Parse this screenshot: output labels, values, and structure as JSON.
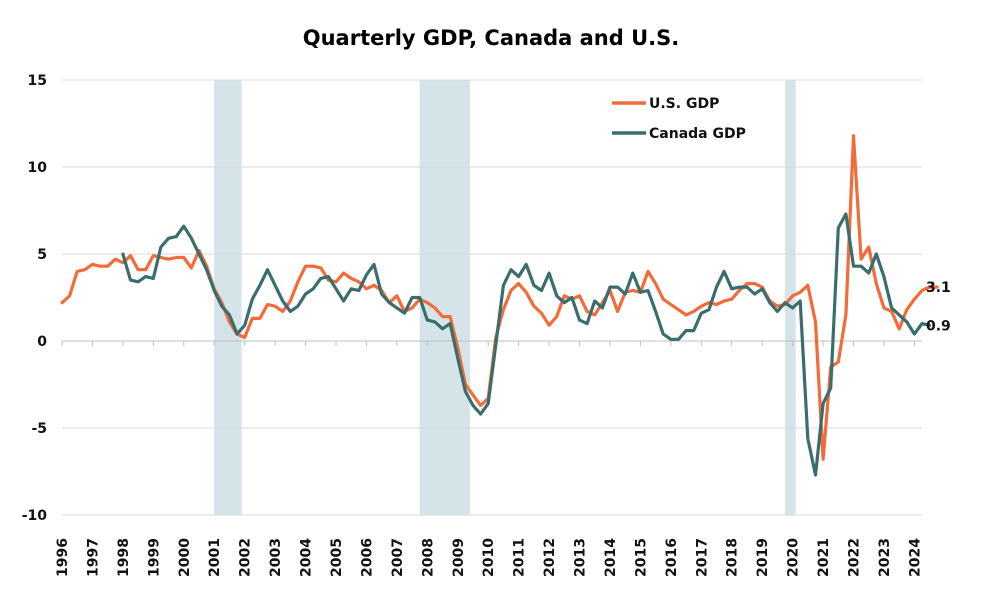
{
  "chart_data": {
    "type": "line",
    "title": "Quarterly GDP, Canada and U.S.",
    "xlabel": "",
    "ylabel": "",
    "xlim": [
      1996,
      2024.25
    ],
    "ylim": [
      -10,
      15
    ],
    "y_ticks": [
      15,
      10,
      5,
      0,
      -5,
      -10
    ],
    "y_tick_labels": [
      "15",
      "10",
      "5",
      "0",
      "-5",
      "-10"
    ],
    "x_tick_labels": [
      "1996",
      "1997",
      "1998",
      "1999",
      "2000",
      "2001",
      "2002",
      "2003",
      "2004",
      "2005",
      "2006",
      "2007",
      "2008",
      "2009",
      "2010",
      "2011",
      "2012",
      "2013",
      "2014",
      "2015",
      "2016",
      "2017",
      "2018",
      "2019",
      "2020",
      "2021",
      "2022",
      "2023",
      "2024"
    ],
    "grid": "horizontal",
    "legend_position": "top-right",
    "recession_shading": [
      [
        2001.0,
        2001.9
      ],
      [
        2007.75,
        2009.4
      ],
      [
        2019.75,
        2020.1
      ]
    ],
    "shading_color": "#d4e4e8",
    "series": [
      {
        "name": "U.S. GDP",
        "color": "#f26b38",
        "end_label": "3.1",
        "points": [
          [
            1996.0,
            2.2
          ],
          [
            1996.25,
            2.6
          ],
          [
            1996.5,
            4.0
          ],
          [
            1996.75,
            4.1
          ],
          [
            1997.0,
            4.4
          ],
          [
            1997.25,
            4.3
          ],
          [
            1997.5,
            4.3
          ],
          [
            1997.75,
            4.7
          ],
          [
            1998.0,
            4.5
          ],
          [
            1998.25,
            4.9
          ],
          [
            1998.5,
            4.1
          ],
          [
            1998.75,
            4.1
          ],
          [
            1999.0,
            4.9
          ],
          [
            1999.25,
            4.8
          ],
          [
            1999.5,
            4.7
          ],
          [
            1999.75,
            4.8
          ],
          [
            2000.0,
            4.8
          ],
          [
            2000.25,
            4.2
          ],
          [
            2000.5,
            5.2
          ],
          [
            2000.75,
            4.3
          ],
          [
            2001.0,
            3.0
          ],
          [
            2001.25,
            2.2
          ],
          [
            2001.5,
            1.1
          ],
          [
            2001.75,
            0.4
          ],
          [
            2002.0,
            0.2
          ],
          [
            2002.25,
            1.3
          ],
          [
            2002.5,
            1.3
          ],
          [
            2002.75,
            2.1
          ],
          [
            2003.0,
            2.0
          ],
          [
            2003.25,
            1.7
          ],
          [
            2003.5,
            2.3
          ],
          [
            2003.75,
            3.4
          ],
          [
            2004.0,
            4.3
          ],
          [
            2004.25,
            4.3
          ],
          [
            2004.5,
            4.2
          ],
          [
            2004.75,
            3.5
          ],
          [
            2005.0,
            3.4
          ],
          [
            2005.25,
            3.9
          ],
          [
            2005.5,
            3.6
          ],
          [
            2005.75,
            3.4
          ],
          [
            2006.0,
            3.0
          ],
          [
            2006.25,
            3.2
          ],
          [
            2006.5,
            2.9
          ],
          [
            2006.75,
            2.2
          ],
          [
            2007.0,
            2.6
          ],
          [
            2007.25,
            1.7
          ],
          [
            2007.5,
            1.9
          ],
          [
            2007.75,
            2.4
          ],
          [
            2008.0,
            2.2
          ],
          [
            2008.25,
            1.9
          ],
          [
            2008.5,
            1.4
          ],
          [
            2008.75,
            1.4
          ],
          [
            2009.0,
            -0.4
          ],
          [
            2009.25,
            -2.5
          ],
          [
            2009.5,
            -3.1
          ],
          [
            2009.75,
            -3.7
          ],
          [
            2010.0,
            -3.3
          ],
          [
            2010.25,
            0.2
          ],
          [
            2010.5,
            1.8
          ],
          [
            2010.75,
            2.9
          ],
          [
            2011.0,
            3.3
          ],
          [
            2011.25,
            2.8
          ],
          [
            2011.5,
            2.0
          ],
          [
            2011.75,
            1.6
          ],
          [
            2012.0,
            0.9
          ],
          [
            2012.25,
            1.4
          ],
          [
            2012.5,
            2.6
          ],
          [
            2012.75,
            2.4
          ],
          [
            2013.0,
            2.6
          ],
          [
            2013.25,
            1.7
          ],
          [
            2013.5,
            1.5
          ],
          [
            2013.75,
            2.2
          ],
          [
            2014.0,
            2.9
          ],
          [
            2014.25,
            1.7
          ],
          [
            2014.5,
            2.8
          ],
          [
            2014.75,
            2.9
          ],
          [
            2015.0,
            2.8
          ],
          [
            2015.25,
            4.0
          ],
          [
            2015.5,
            3.3
          ],
          [
            2015.75,
            2.4
          ],
          [
            2016.0,
            2.1
          ],
          [
            2016.25,
            1.8
          ],
          [
            2016.5,
            1.5
          ],
          [
            2016.75,
            1.7
          ],
          [
            2017.0,
            2.0
          ],
          [
            2017.25,
            2.2
          ],
          [
            2017.5,
            2.1
          ],
          [
            2017.75,
            2.3
          ],
          [
            2018.0,
            2.4
          ],
          [
            2018.25,
            2.9
          ],
          [
            2018.5,
            3.3
          ],
          [
            2018.75,
            3.3
          ],
          [
            2019.0,
            3.1
          ],
          [
            2019.25,
            2.3
          ],
          [
            2019.5,
            2.0
          ],
          [
            2019.75,
            2.1
          ],
          [
            2020.0,
            2.6
          ],
          [
            2020.25,
            2.8
          ],
          [
            2020.5,
            3.2
          ],
          [
            2020.75,
            1.1
          ],
          [
            2021.0,
            -6.8
          ],
          [
            2021.25,
            -1.5
          ],
          [
            2021.5,
            -1.2
          ],
          [
            2021.75,
            1.5
          ],
          [
            2022.0,
            11.8
          ],
          [
            2022.25,
            4.7
          ],
          [
            2022.5,
            5.4
          ],
          [
            2022.75,
            3.3
          ],
          [
            2023.0,
            1.9
          ],
          [
            2023.25,
            1.7
          ],
          [
            2023.5,
            0.7
          ],
          [
            2023.75,
            1.8
          ],
          [
            2024.0,
            2.4
          ],
          [
            2024.25,
            2.9
          ],
          [
            2024.5,
            3.1
          ],
          [
            2024.75,
            3.1
          ]
        ]
      },
      {
        "name": "Canada GDP",
        "color": "#3a6e6e",
        "end_label": "0.9",
        "points": [
          [
            1998.0,
            5.0
          ],
          [
            1998.25,
            3.5
          ],
          [
            1998.5,
            3.4
          ],
          [
            1998.75,
            3.7
          ],
          [
            1999.0,
            3.6
          ],
          [
            1999.25,
            5.4
          ],
          [
            1999.5,
            5.9
          ],
          [
            1999.75,
            6.0
          ],
          [
            2000.0,
            6.6
          ],
          [
            2000.25,
            5.9
          ],
          [
            2000.5,
            5.0
          ],
          [
            2000.75,
            4.1
          ],
          [
            2001.0,
            2.9
          ],
          [
            2001.25,
            2.0
          ],
          [
            2001.5,
            1.5
          ],
          [
            2001.75,
            0.4
          ],
          [
            2002.0,
            0.9
          ],
          [
            2002.25,
            2.4
          ],
          [
            2002.5,
            3.2
          ],
          [
            2002.75,
            4.1
          ],
          [
            2003.0,
            3.2
          ],
          [
            2003.25,
            2.3
          ],
          [
            2003.5,
            1.7
          ],
          [
            2003.75,
            2.0
          ],
          [
            2004.0,
            2.7
          ],
          [
            2004.25,
            3.0
          ],
          [
            2004.5,
            3.6
          ],
          [
            2004.75,
            3.7
          ],
          [
            2005.0,
            3.0
          ],
          [
            2005.25,
            2.3
          ],
          [
            2005.5,
            3.0
          ],
          [
            2005.75,
            2.9
          ],
          [
            2006.0,
            3.8
          ],
          [
            2006.25,
            4.4
          ],
          [
            2006.5,
            2.7
          ],
          [
            2006.75,
            2.2
          ],
          [
            2007.0,
            1.9
          ],
          [
            2007.25,
            1.6
          ],
          [
            2007.5,
            2.5
          ],
          [
            2007.75,
            2.5
          ],
          [
            2008.0,
            1.2
          ],
          [
            2008.25,
            1.1
          ],
          [
            2008.5,
            0.7
          ],
          [
            2008.75,
            1.0
          ],
          [
            2009.0,
            -1.0
          ],
          [
            2009.25,
            -2.9
          ],
          [
            2009.5,
            -3.7
          ],
          [
            2009.75,
            -4.2
          ],
          [
            2010.0,
            -3.6
          ],
          [
            2010.25,
            -0.2
          ],
          [
            2010.5,
            3.2
          ],
          [
            2010.75,
            4.1
          ],
          [
            2011.0,
            3.7
          ],
          [
            2011.25,
            4.4
          ],
          [
            2011.5,
            3.2
          ],
          [
            2011.75,
            2.9
          ],
          [
            2012.0,
            3.9
          ],
          [
            2012.25,
            2.6
          ],
          [
            2012.5,
            2.2
          ],
          [
            2012.75,
            2.5
          ],
          [
            2013.0,
            1.2
          ],
          [
            2013.25,
            1.0
          ],
          [
            2013.5,
            2.3
          ],
          [
            2013.75,
            1.9
          ],
          [
            2014.0,
            3.1
          ],
          [
            2014.25,
            3.1
          ],
          [
            2014.5,
            2.7
          ],
          [
            2014.75,
            3.9
          ],
          [
            2015.0,
            2.8
          ],
          [
            2015.25,
            2.9
          ],
          [
            2015.5,
            1.7
          ],
          [
            2015.75,
            0.4
          ],
          [
            2016.0,
            0.1
          ],
          [
            2016.25,
            0.1
          ],
          [
            2016.5,
            0.6
          ],
          [
            2016.75,
            0.6
          ],
          [
            2017.0,
            1.6
          ],
          [
            2017.25,
            1.8
          ],
          [
            2017.5,
            3.1
          ],
          [
            2017.75,
            4.0
          ],
          [
            2018.0,
            3.0
          ],
          [
            2018.25,
            3.1
          ],
          [
            2018.5,
            3.1
          ],
          [
            2018.75,
            2.7
          ],
          [
            2019.0,
            3.0
          ],
          [
            2019.25,
            2.2
          ],
          [
            2019.5,
            1.7
          ],
          [
            2019.75,
            2.2
          ],
          [
            2020.0,
            1.9
          ],
          [
            2020.25,
            2.3
          ],
          [
            2020.5,
            -5.6
          ],
          [
            2020.75,
            -7.7
          ],
          [
            2021.0,
            -3.6
          ],
          [
            2021.25,
            -2.7
          ],
          [
            2021.5,
            6.5
          ],
          [
            2021.75,
            7.3
          ],
          [
            2022.0,
            4.3
          ],
          [
            2022.25,
            4.3
          ],
          [
            2022.5,
            3.9
          ],
          [
            2022.75,
            5.0
          ],
          [
            2023.0,
            3.7
          ],
          [
            2023.25,
            1.9
          ],
          [
            2023.5,
            1.5
          ],
          [
            2023.75,
            1.1
          ],
          [
            2024.0,
            0.4
          ],
          [
            2024.25,
            1.0
          ],
          [
            2024.5,
            0.9
          ]
        ]
      }
    ]
  }
}
